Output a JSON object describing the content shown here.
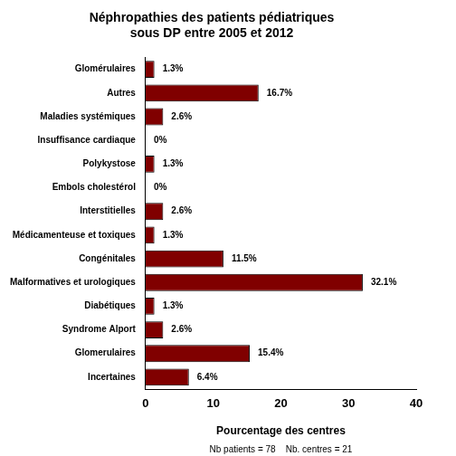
{
  "chart_data": {
    "type": "bar",
    "orientation": "horizontal",
    "title": [
      "Néphropathies des patients pédiatriques",
      "sous DP entre 2005 et 2012"
    ],
    "x_label": "Pourcentage des centres",
    "annotation": "Nb patients = 78    Nb. centres = 21",
    "categories": [
      "Glomérulaires",
      "Autres",
      "Maladies systémiques",
      "Insuffisance cardiaque",
      "Polykystose",
      "Embols cholestérol",
      "Interstitielles",
      "Médicamenteuse et toxiques",
      "Congénitales",
      "Malformatives et urologiques",
      "Diabétiques",
      "Syndrome Alport",
      "Glomerulaires",
      "Incertaines"
    ],
    "values": [
      1.3,
      16.7,
      2.6,
      0,
      1.3,
      0,
      2.6,
      1.3,
      11.5,
      32.1,
      1.3,
      2.6,
      15.4,
      6.4
    ],
    "value_labels": [
      "1.3%",
      "16.7%",
      "2.6%",
      "0%",
      "1.3%",
      "0%",
      "2.6%",
      "1.3%",
      "11.5%",
      "32.1%",
      "1.3%",
      "2.6%",
      "15.4%",
      "6.4%"
    ],
    "color": "#800000",
    "xlim": [
      0,
      40
    ],
    "xticks": [
      0,
      10,
      20,
      30,
      40
    ],
    "grid": false,
    "data_labels": true
  }
}
